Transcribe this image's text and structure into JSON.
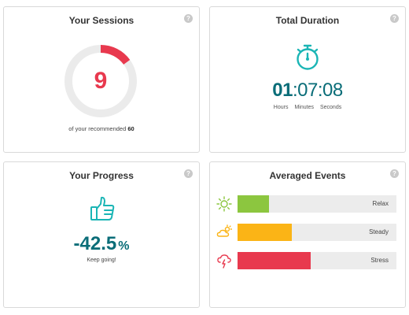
{
  "sessions": {
    "title": "Your Sessions",
    "value": "9",
    "caption_prefix": "of your recommended",
    "caption_target": "60",
    "fraction": 0.15,
    "ring_color": "#e8394e",
    "track_color": "#ebebeb"
  },
  "duration": {
    "title": "Total Duration",
    "hours": "01",
    "minutes": "07",
    "seconds": "08",
    "sep": ":",
    "unit_hours": "Hours",
    "unit_minutes": "Minutes",
    "unit_seconds": "Seconds",
    "icon": "stopwatch-icon"
  },
  "progress": {
    "title": "Your Progress",
    "value": "-42.5",
    "unit": "%",
    "caption": "Keep going!",
    "icon": "thumbs-up-icon"
  },
  "events": {
    "title": "Averaged Events",
    "items": [
      {
        "label": "Relax",
        "fraction": 0.2,
        "color": "#8cc63f",
        "icon": "sun-icon"
      },
      {
        "label": "Steady",
        "fraction": 0.34,
        "color": "#fbb416",
        "icon": "cloud-sun-icon"
      },
      {
        "label": "Stress",
        "fraction": 0.46,
        "color": "#e8394e",
        "icon": "storm-cloud-icon"
      }
    ]
  },
  "help_glyph": "?",
  "colors": {
    "teal": "#0a6d78",
    "icon_teal": "#1ab5b5"
  }
}
